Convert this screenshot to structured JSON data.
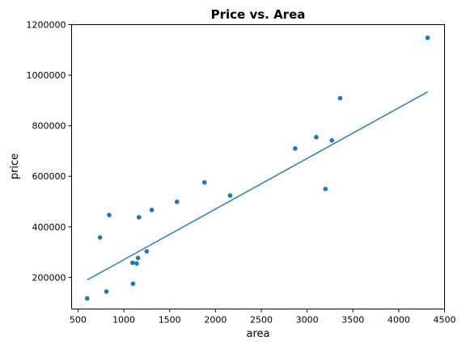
{
  "chart_data": {
    "type": "scatter",
    "title": "Price vs. Area",
    "xlabel": "area",
    "ylabel": "price",
    "xlim": [
      430,
      4500
    ],
    "ylim": [
      75000,
      1200000
    ],
    "x_ticks": [
      500,
      1000,
      1500,
      2000,
      2500,
      3000,
      3500,
      4000,
      4500
    ],
    "y_ticks": [
      200000,
      400000,
      600000,
      800000,
      1000000,
      1200000
    ],
    "grid": false,
    "colors": {
      "marker": "#1f77b4",
      "line": "#1f77b4"
    },
    "points": [
      {
        "x": 600,
        "y": 117000
      },
      {
        "x": 740,
        "y": 358000
      },
      {
        "x": 810,
        "y": 144000
      },
      {
        "x": 840,
        "y": 447000
      },
      {
        "x": 1095,
        "y": 258000
      },
      {
        "x": 1100,
        "y": 175000
      },
      {
        "x": 1140,
        "y": 255000
      },
      {
        "x": 1155,
        "y": 277000
      },
      {
        "x": 1165,
        "y": 438000
      },
      {
        "x": 1250,
        "y": 303000
      },
      {
        "x": 1305,
        "y": 467000
      },
      {
        "x": 1580,
        "y": 499000
      },
      {
        "x": 1880,
        "y": 576000
      },
      {
        "x": 2160,
        "y": 524000
      },
      {
        "x": 2870,
        "y": 710000
      },
      {
        "x": 3100,
        "y": 755000
      },
      {
        "x": 3200,
        "y": 550000
      },
      {
        "x": 3270,
        "y": 742000
      },
      {
        "x": 3360,
        "y": 909000
      },
      {
        "x": 4315,
        "y": 1148000
      }
    ],
    "regression_line": {
      "x": [
        600,
        4315
      ],
      "y": [
        190000,
        934000
      ]
    }
  }
}
